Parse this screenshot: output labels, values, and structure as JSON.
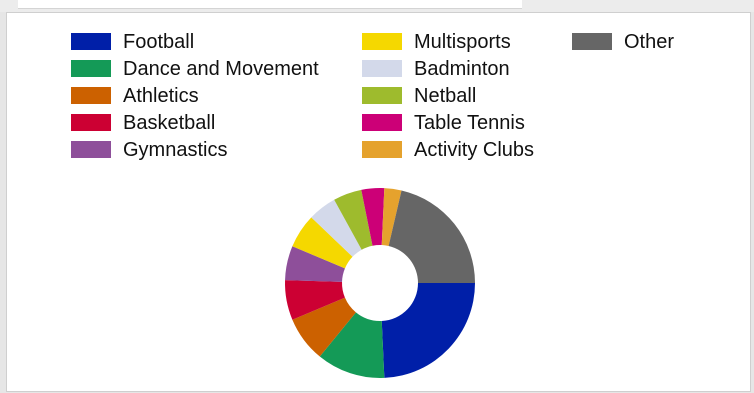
{
  "chart_data": {
    "type": "pie",
    "variant": "donut",
    "title": "",
    "legend_position": "top",
    "categories": [
      "Football",
      "Dance and Movement",
      "Athletics",
      "Basketball",
      "Gymnastics",
      "Multisports",
      "Badminton",
      "Netball",
      "Table Tennis",
      "Activity Clubs",
      "Other"
    ],
    "values": [
      25,
      12,
      8,
      7,
      6,
      6,
      5,
      5,
      4,
      3,
      22
    ],
    "colors": [
      "#001fa8",
      "#149a57",
      "#cc6100",
      "#cc0033",
      "#8e4f9a",
      "#f5d800",
      "#d3d9ea",
      "#9ebb2d",
      "#cc0077",
      "#e5a22d",
      "#666666"
    ],
    "legend_columns": [
      [
        0,
        1,
        2,
        3,
        4
      ],
      [
        5,
        6,
        7,
        8,
        9
      ],
      [
        10
      ]
    ]
  }
}
